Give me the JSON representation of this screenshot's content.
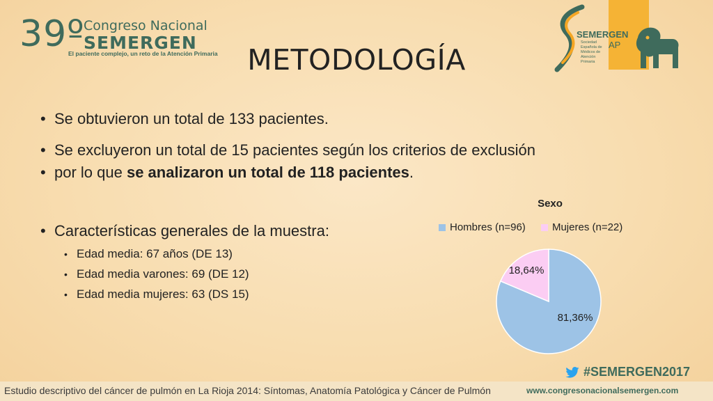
{
  "header": {
    "conference_number": "39º",
    "conference_line1": "Congreso Nacional",
    "conference_line2": "SEMERGEN",
    "conference_tagline": "El paciente complejo, un reto de la Atención Primaria",
    "logo_name": "SEMERGEN",
    "logo_ap": "AP",
    "logo_subtitle": "Sociedad Española de Médicos de Atención Primaria"
  },
  "slide": {
    "title": "METODOLOGÍA",
    "bullet1": "Se obtuvieron un total de 133 pacientes.",
    "bullet2_line1": "Se excluyeron un total de 15 pacientes según los criterios de exclusión",
    "bullet2_line2_normal": "por lo que ",
    "bullet2_line2_bold": "se analizaron un total de 118 pacientes",
    "bullet2_line2_end": ".",
    "bullet3": "Características generales de la muestra:",
    "sub_bullets": [
      "Edad media: 67 años (DE 13)",
      "Edad media varones: 69 (DE 12)",
      "Edad media mujeres: 63 (DS 15)"
    ]
  },
  "chart_data": {
    "type": "pie",
    "title": "Sexo",
    "categories": [
      "Hombres (n=96)",
      "Mujeres (n=22)"
    ],
    "values": [
      81.36,
      18.64
    ],
    "labels": [
      "81,36%",
      "18,64%"
    ],
    "colors": [
      "#9dc3e6",
      "#fbcdf3"
    ],
    "legend": "top"
  },
  "social": {
    "hashtag": "#SEMERGEN2017",
    "icon": "twitter-bird-icon"
  },
  "footer": {
    "text": "Estudio descriptivo del cáncer de pulmón en La Rioja 2014: Síntomas, Anatomía Patológica y Cáncer de Pulmón",
    "url": "www.congresonacionalsemergen.com"
  }
}
